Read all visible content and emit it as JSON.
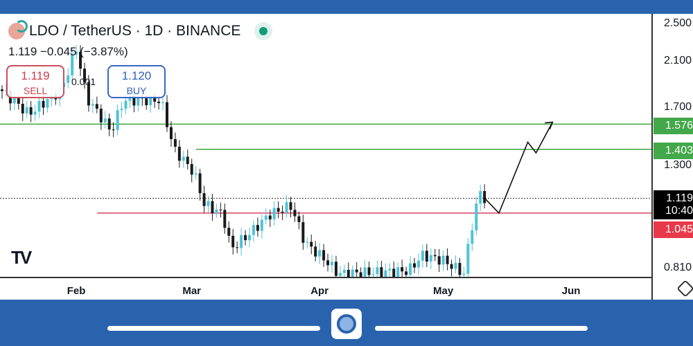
{
  "header": {
    "symbol": "LDO / TetherUS · 1D · BINANCE",
    "price_change": "1.119  −0.045 (−3.87%)",
    "status_color": "#0f9d76"
  },
  "trade": {
    "sell_price": "1.119",
    "sell_label": "SELL",
    "buy_price": "1.120",
    "buy_label": "BUY",
    "spread": "0.001"
  },
  "price_labels": {
    "target2": "1.576",
    "target1": "1.403",
    "current": "1.119",
    "countdown": "10:40",
    "support": "1.045"
  },
  "colors": {
    "up": "#4fc3d9",
    "down": "#1a1a1a",
    "green_line": "#3aa63a",
    "red_line": "#d64560",
    "green_label": "#43a84a",
    "red_label": "#e8394a"
  },
  "chart_data": {
    "type": "candlestick",
    "title": "LDO / TetherUS · 1D · BINANCE",
    "scale": "log",
    "ylim": [
      0.79,
      2.6
    ],
    "y_ticks": [
      "2.500",
      "2.100",
      "1.700",
      "1.300",
      "0.810"
    ],
    "y_tick_values": [
      2.5,
      2.1,
      1.7,
      1.3,
      0.81
    ],
    "x_ticks": [
      "Feb",
      "Mar",
      "Apr",
      "May",
      "Jun"
    ],
    "x_tick_days": [
      18.5,
      46.5,
      77.5,
      107.5,
      138.5
    ],
    "close_keypoints": [
      [
        0,
        1.85
      ],
      [
        7,
        1.65
      ],
      [
        15,
        1.85
      ],
      [
        18.5,
        2.23
      ],
      [
        21,
        1.78
      ],
      [
        27,
        1.52
      ],
      [
        30,
        1.76
      ],
      [
        39,
        1.76
      ],
      [
        42,
        1.41
      ],
      [
        47,
        1.26
      ],
      [
        49.5,
        1.09
      ],
      [
        54,
        1.04
      ],
      [
        56,
        0.885
      ],
      [
        60.5,
        0.95
      ],
      [
        65.5,
        1.04
      ],
      [
        70.5,
        1.08
      ],
      [
        74,
        0.91
      ],
      [
        79,
        0.84
      ],
      [
        82,
        0.79
      ],
      [
        99,
        0.8
      ],
      [
        102.5,
        0.86
      ],
      [
        107.5,
        0.84
      ],
      [
        112.5,
        0.79
      ],
      [
        115,
        1.04
      ],
      [
        116.5,
        1.15
      ],
      [
        117.5,
        1.119
      ]
    ],
    "horizontal_levels": [
      {
        "price": 1.576,
        "type": "resistance"
      },
      {
        "price": 1.403,
        "type": "resistance"
      },
      {
        "price": 1.045,
        "type": "support"
      },
      {
        "price": 1.119,
        "type": "last-price"
      }
    ],
    "projection_path": [
      [
        117.5,
        1.12
      ],
      [
        121,
        1.045
      ],
      [
        128,
        1.45
      ],
      [
        130,
        1.38
      ],
      [
        134,
        1.59
      ]
    ]
  }
}
